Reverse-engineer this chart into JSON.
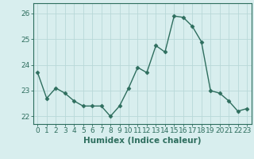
{
  "x": [
    0,
    1,
    2,
    3,
    4,
    5,
    6,
    7,
    8,
    9,
    10,
    11,
    12,
    13,
    14,
    15,
    16,
    17,
    18,
    19,
    20,
    21,
    22,
    23
  ],
  "y": [
    23.7,
    22.7,
    23.1,
    22.9,
    22.6,
    22.4,
    22.4,
    22.4,
    22.0,
    22.4,
    23.1,
    23.9,
    23.7,
    24.75,
    24.5,
    25.9,
    25.85,
    25.5,
    24.9,
    23.0,
    22.9,
    22.6,
    22.2,
    22.3
  ],
  "line_color": "#2e6e5e",
  "marker": "D",
  "markersize": 2.5,
  "linewidth": 1.0,
  "xlabel": "Humidex (Indice chaleur)",
  "xlim": [
    -0.5,
    23.5
  ],
  "ylim": [
    21.7,
    26.4
  ],
  "yticks": [
    22,
    23,
    24,
    25,
    26
  ],
  "xticks": [
    0,
    1,
    2,
    3,
    4,
    5,
    6,
    7,
    8,
    9,
    10,
    11,
    12,
    13,
    14,
    15,
    16,
    17,
    18,
    19,
    20,
    21,
    22,
    23
  ],
  "background_color": "#d8eeee",
  "grid_color": "#b8d8d8",
  "axis_color": "#2e6e5e",
  "tick_color": "#2e6e5e",
  "xlabel_fontsize": 7.5,
  "tick_fontsize": 6.5
}
